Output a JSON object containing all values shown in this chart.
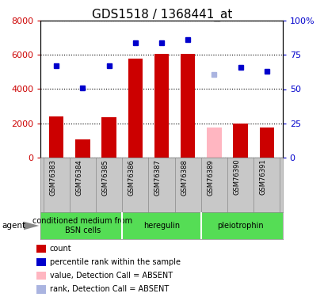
{
  "title": "GDS1518 / 1368441_at",
  "samples": [
    "GSM76383",
    "GSM76384",
    "GSM76385",
    "GSM76386",
    "GSM76387",
    "GSM76388",
    "GSM76389",
    "GSM76390",
    "GSM76391"
  ],
  "bar_values": [
    2400,
    1050,
    2350,
    5800,
    6050,
    6050,
    1750,
    2000,
    1750
  ],
  "bar_colors": [
    "#cc0000",
    "#cc0000",
    "#cc0000",
    "#cc0000",
    "#cc0000",
    "#cc0000",
    "#ffb6c1",
    "#cc0000",
    "#cc0000"
  ],
  "rank_values": [
    67,
    51,
    67,
    84,
    84,
    86,
    61,
    66,
    63
  ],
  "rank_colors": [
    "#0000cc",
    "#0000cc",
    "#0000cc",
    "#0000cc",
    "#0000cc",
    "#0000cc",
    "#aab4e0",
    "#0000cc",
    "#0000cc"
  ],
  "ylim_left": [
    0,
    8000
  ],
  "ylim_right": [
    0,
    100
  ],
  "yticks_left": [
    0,
    2000,
    4000,
    6000,
    8000
  ],
  "ytick_labels_left": [
    "0",
    "2000",
    "4000",
    "6000",
    "8000"
  ],
  "yticks_right": [
    0,
    25,
    50,
    75,
    100
  ],
  "ytick_labels_right": [
    "0",
    "25",
    "50",
    "75",
    "100%"
  ],
  "groups": [
    {
      "label": "conditioned medium from\nBSN cells",
      "start": 0,
      "end": 3
    },
    {
      "label": "heregulin",
      "start": 3,
      "end": 6
    },
    {
      "label": "pleiotrophin",
      "start": 6,
      "end": 9
    }
  ],
  "group_color": "#55dd55",
  "sample_bg": "#c8c8c8",
  "legend_items": [
    {
      "label": "count",
      "color": "#cc0000"
    },
    {
      "label": "percentile rank within the sample",
      "color": "#0000cc"
    },
    {
      "label": "value, Detection Call = ABSENT",
      "color": "#ffb6c1"
    },
    {
      "label": "rank, Detection Call = ABSENT",
      "color": "#aab4e0"
    }
  ],
  "title_fontsize": 11,
  "tick_fontsize": 8,
  "sample_fontsize": 6.0,
  "legend_fontsize": 7,
  "group_fontsize": 7
}
